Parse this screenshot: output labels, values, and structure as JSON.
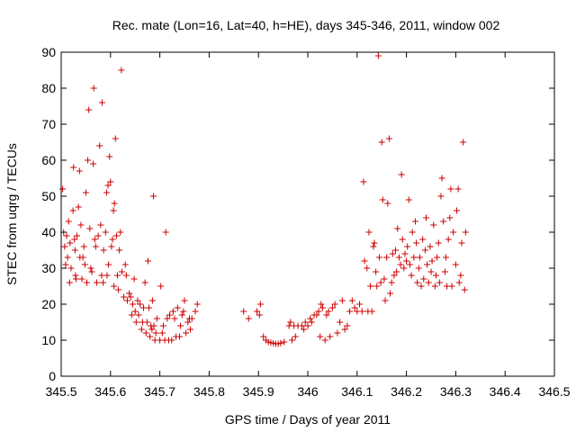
{
  "chart_data": {
    "type": "scatter",
    "title": "Rec. mate (Lon=16, Lat=40, h=HE), days 345-346, 2011, window 002",
    "xlabel": "GPS time / Days of year 2011",
    "ylabel": "STEC from uqrg / TECUs",
    "xlim": [
      345.5,
      346.5
    ],
    "ylim": [
      0,
      90
    ],
    "xticks": [
      "345.5",
      "345.6",
      "345.7",
      "345.8",
      "345.9",
      "346",
      "346.1",
      "346.2",
      "346.3",
      "346.4",
      "346.5"
    ],
    "yticks": [
      "0",
      "10",
      "20",
      "30",
      "40",
      "50",
      "60",
      "70",
      "80",
      "90"
    ],
    "grid": false,
    "marker": "plus",
    "color": "#cc0000",
    "points": [
      [
        345.503,
        52
      ],
      [
        345.505,
        40
      ],
      [
        345.507,
        36
      ],
      [
        345.509,
        31
      ],
      [
        345.511,
        39
      ],
      [
        345.513,
        33
      ],
      [
        345.515,
        43
      ],
      [
        345.517,
        26
      ],
      [
        345.518,
        37
      ],
      [
        345.52,
        30
      ],
      [
        345.524,
        46
      ],
      [
        345.525,
        58
      ],
      [
        345.527,
        38
      ],
      [
        345.528,
        35
      ],
      [
        345.529,
        28
      ],
      [
        345.53,
        27
      ],
      [
        345.532,
        39
      ],
      [
        345.535,
        47
      ],
      [
        345.537,
        57
      ],
      [
        345.538,
        33
      ],
      [
        345.54,
        42
      ],
      [
        345.542,
        27
      ],
      [
        345.544,
        33
      ],
      [
        345.546,
        36
      ],
      [
        345.548,
        31
      ],
      [
        345.55,
        51
      ],
      [
        345.552,
        26
      ],
      [
        345.554,
        60
      ],
      [
        345.556,
        74
      ],
      [
        345.558,
        41
      ],
      [
        345.56,
        30
      ],
      [
        345.562,
        29
      ],
      [
        345.565,
        59
      ],
      [
        345.566,
        80
      ],
      [
        345.568,
        38
      ],
      [
        345.57,
        36
      ],
      [
        345.572,
        26
      ],
      [
        345.575,
        39
      ],
      [
        345.578,
        64
      ],
      [
        345.58,
        42
      ],
      [
        345.582,
        28
      ],
      [
        345.583,
        76
      ],
      [
        345.585,
        26
      ],
      [
        345.586,
        35
      ],
      [
        345.59,
        40
      ],
      [
        345.592,
        51
      ],
      [
        345.593,
        28
      ],
      [
        345.595,
        53
      ],
      [
        345.596,
        31
      ],
      [
        345.598,
        61
      ],
      [
        345.6,
        54
      ],
      [
        345.602,
        36
      ],
      [
        345.604,
        38
      ],
      [
        345.606,
        46
      ],
      [
        345.607,
        25
      ],
      [
        345.608,
        48
      ],
      [
        345.61,
        66
      ],
      [
        345.612,
        39
      ],
      [
        345.614,
        28
      ],
      [
        345.616,
        24
      ],
      [
        345.618,
        35
      ],
      [
        345.62,
        40
      ],
      [
        345.622,
        85
      ],
      [
        345.623,
        29
      ],
      [
        345.627,
        22
      ],
      [
        345.63,
        31
      ],
      [
        345.632,
        28
      ],
      [
        345.634,
        21
      ],
      [
        345.638,
        23
      ],
      [
        345.641,
        22
      ],
      [
        345.643,
        17
      ],
      [
        345.645,
        20
      ],
      [
        345.648,
        27
      ],
      [
        345.65,
        18
      ],
      [
        345.652,
        15
      ],
      [
        345.655,
        21
      ],
      [
        345.657,
        17
      ],
      [
        345.66,
        20
      ],
      [
        345.663,
        13
      ],
      [
        345.665,
        15
      ],
      [
        345.667,
        19
      ],
      [
        345.67,
        26
      ],
      [
        345.672,
        12
      ],
      [
        345.674,
        15
      ],
      [
        345.676,
        32
      ],
      [
        345.678,
        19
      ],
      [
        345.68,
        11
      ],
      [
        345.682,
        14
      ],
      [
        345.684,
        13
      ],
      [
        345.685,
        21
      ],
      [
        345.687,
        50
      ],
      [
        345.688,
        14
      ],
      [
        345.69,
        10
      ],
      [
        345.692,
        12
      ],
      [
        345.694,
        16
      ],
      [
        345.7,
        10
      ],
      [
        345.702,
        25
      ],
      [
        345.705,
        12
      ],
      [
        345.707,
        14
      ],
      [
        345.71,
        10
      ],
      [
        345.712,
        40
      ],
      [
        345.715,
        16
      ],
      [
        345.718,
        10
      ],
      [
        345.72,
        17
      ],
      [
        345.724,
        10
      ],
      [
        345.727,
        18
      ],
      [
        345.73,
        16
      ],
      [
        345.733,
        11
      ],
      [
        345.736,
        19
      ],
      [
        345.74,
        11
      ],
      [
        345.742,
        14
      ],
      [
        345.745,
        17
      ],
      [
        345.748,
        18
      ],
      [
        345.75,
        21
      ],
      [
        345.753,
        12
      ],
      [
        345.757,
        15
      ],
      [
        345.76,
        16
      ],
      [
        345.762,
        13
      ],
      [
        345.765,
        16
      ],
      [
        345.772,
        18
      ],
      [
        345.776,
        20
      ],
      [
        345.87,
        18
      ],
      [
        345.88,
        16
      ],
      [
        345.897,
        18
      ],
      [
        345.902,
        17
      ],
      [
        345.904,
        20
      ],
      [
        345.91,
        11
      ],
      [
        345.915,
        10
      ],
      [
        345.92,
        9.5
      ],
      [
        345.925,
        9.3
      ],
      [
        345.93,
        9.2
      ],
      [
        345.935,
        9
      ],
      [
        345.94,
        9
      ],
      [
        345.945,
        9.2
      ],
      [
        345.952,
        9.5
      ],
      [
        345.962,
        14
      ],
      [
        345.965,
        15
      ],
      [
        345.968,
        10
      ],
      [
        345.972,
        14
      ],
      [
        345.975,
        11
      ],
      [
        345.98,
        14
      ],
      [
        345.988,
        14
      ],
      [
        345.992,
        13
      ],
      [
        345.995,
        15
      ],
      [
        346.0,
        14
      ],
      [
        346.005,
        16
      ],
      [
        346.008,
        15
      ],
      [
        346.013,
        17
      ],
      [
        346.018,
        17
      ],
      [
        346.022,
        18
      ],
      [
        346.025,
        11
      ],
      [
        346.027,
        20
      ],
      [
        346.03,
        19
      ],
      [
        346.035,
        10
      ],
      [
        346.038,
        17
      ],
      [
        346.042,
        18
      ],
      [
        346.045,
        11
      ],
      [
        346.05,
        19
      ],
      [
        346.055,
        20
      ],
      [
        346.06,
        12
      ],
      [
        346.065,
        15
      ],
      [
        346.07,
        21
      ],
      [
        346.075,
        13
      ],
      [
        346.08,
        14
      ],
      [
        346.085,
        18
      ],
      [
        346.09,
        21
      ],
      [
        346.095,
        19
      ],
      [
        346.1,
        18
      ],
      [
        346.105,
        20
      ],
      [
        346.11,
        18
      ],
      [
        346.113,
        54
      ],
      [
        346.115,
        32
      ],
      [
        346.12,
        30
      ],
      [
        346.122,
        18
      ],
      [
        346.124,
        40
      ],
      [
        346.127,
        25
      ],
      [
        346.13,
        18
      ],
      [
        346.133,
        36
      ],
      [
        346.135,
        37
      ],
      [
        346.138,
        29
      ],
      [
        346.14,
        25
      ],
      [
        346.143,
        89
      ],
      [
        346.145,
        33
      ],
      [
        346.148,
        26
      ],
      [
        346.15,
        65
      ],
      [
        346.152,
        49
      ],
      [
        346.155,
        27
      ],
      [
        346.157,
        21
      ],
      [
        346.16,
        33
      ],
      [
        346.162,
        48
      ],
      [
        346.165,
        66
      ],
      [
        346.167,
        23
      ],
      [
        346.17,
        26
      ],
      [
        346.172,
        34
      ],
      [
        346.175,
        28
      ],
      [
        346.178,
        35
      ],
      [
        346.18,
        29
      ],
      [
        346.182,
        41
      ],
      [
        346.185,
        33
      ],
      [
        346.188,
        31
      ],
      [
        346.19,
        56
      ],
      [
        346.192,
        38
      ],
      [
        346.195,
        30
      ],
      [
        346.197,
        34
      ],
      [
        346.2,
        32
      ],
      [
        346.202,
        36
      ],
      [
        346.205,
        49
      ],
      [
        346.207,
        31
      ],
      [
        346.21,
        28
      ],
      [
        346.212,
        40
      ],
      [
        346.215,
        33
      ],
      [
        346.218,
        43
      ],
      [
        346.22,
        37
      ],
      [
        346.222,
        26
      ],
      [
        346.225,
        30
      ],
      [
        346.227,
        33
      ],
      [
        346.23,
        25
      ],
      [
        346.233,
        38
      ],
      [
        346.235,
        27
      ],
      [
        346.238,
        35
      ],
      [
        346.24,
        44
      ],
      [
        346.242,
        31
      ],
      [
        346.245,
        26
      ],
      [
        346.248,
        36
      ],
      [
        346.25,
        29
      ],
      [
        346.252,
        32
      ],
      [
        346.255,
        42
      ],
      [
        346.258,
        25
      ],
      [
        346.26,
        28
      ],
      [
        346.262,
        33
      ],
      [
        346.265,
        37
      ],
      [
        346.267,
        26
      ],
      [
        346.27,
        50
      ],
      [
        346.272,
        55
      ],
      [
        346.275,
        43
      ],
      [
        346.278,
        29
      ],
      [
        346.28,
        33
      ],
      [
        346.282,
        25
      ],
      [
        346.285,
        38
      ],
      [
        346.288,
        44
      ],
      [
        346.29,
        52
      ],
      [
        346.292,
        25
      ],
      [
        346.295,
        40
      ],
      [
        346.3,
        31
      ],
      [
        346.302,
        46
      ],
      [
        346.305,
        52
      ],
      [
        346.307,
        26
      ],
      [
        346.31,
        28
      ],
      [
        346.312,
        37
      ],
      [
        346.315,
        65
      ],
      [
        346.318,
        24
      ],
      [
        346.32,
        40
      ]
    ]
  }
}
